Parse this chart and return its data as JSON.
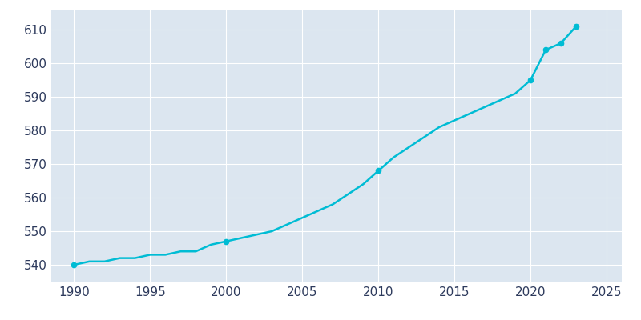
{
  "years": [
    1990,
    1991,
    1992,
    1993,
    1994,
    1995,
    1996,
    1997,
    1998,
    1999,
    2000,
    2001,
    2002,
    2003,
    2004,
    2005,
    2006,
    2007,
    2008,
    2009,
    2010,
    2011,
    2012,
    2013,
    2014,
    2015,
    2016,
    2017,
    2018,
    2019,
    2020,
    2021,
    2022,
    2023
  ],
  "population": [
    540,
    541,
    541,
    542,
    542,
    543,
    543,
    544,
    544,
    546,
    547,
    548,
    549,
    550,
    552,
    554,
    556,
    558,
    561,
    564,
    568,
    572,
    575,
    578,
    581,
    583,
    585,
    587,
    589,
    591,
    595,
    604,
    606,
    611
  ],
  "line_color": "#00bcd4",
  "marker_years": [
    1990,
    2000,
    2010,
    2020,
    2021,
    2022,
    2023
  ],
  "marker_values": [
    540,
    547,
    568,
    595,
    604,
    606,
    611
  ],
  "background_color": "#dce6f0",
  "axes_background": "#dce6f0",
  "figure_background": "#ffffff",
  "grid_color": "#ffffff",
  "text_color": "#2d3a5c",
  "xlim": [
    1988.5,
    2026
  ],
  "ylim": [
    535,
    616
  ],
  "xticks": [
    1990,
    1995,
    2000,
    2005,
    2010,
    2015,
    2020,
    2025
  ],
  "yticks": [
    540,
    550,
    560,
    570,
    580,
    590,
    600,
    610
  ],
  "line_width": 1.8,
  "marker_size": 4.5
}
